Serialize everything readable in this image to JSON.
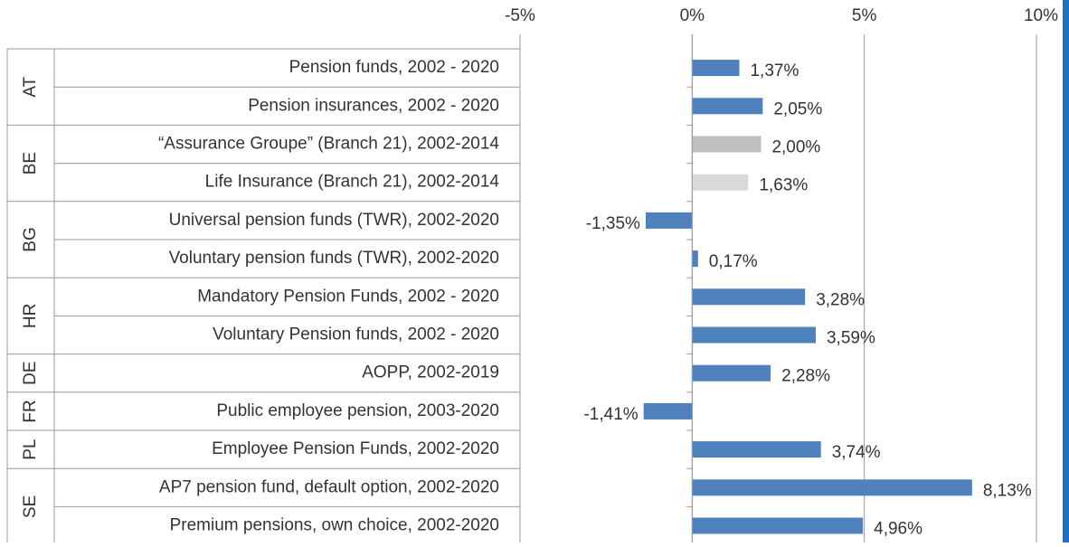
{
  "chart_data": {
    "type": "bar",
    "groups": [
      {
        "label": "AT",
        "categories": [
          "Pension funds, 2002 - 2020",
          "Pension insurances, 2002 - 2020"
        ]
      },
      {
        "label": "BE",
        "categories": [
          "“Assurance Groupe” (Branch 21), 2002-2014",
          "Life Insurance (Branch 21), 2002-2014"
        ]
      },
      {
        "label": "BG",
        "categories": [
          "Universal pension funds (TWR), 2002-2020",
          "Voluntary pension funds (TWR), 2002-2020"
        ]
      },
      {
        "label": "HR",
        "categories": [
          "Mandatory Pension Funds, 2002 - 2020",
          "Voluntary Pension funds, 2002 - 2020"
        ]
      },
      {
        "label": "DE",
        "categories": [
          "AOPP, 2002-2019"
        ]
      },
      {
        "label": "FR",
        "categories": [
          "Public employee pension, 2003-2020"
        ]
      },
      {
        "label": "PL",
        "categories": [
          "Employee Pension Funds, 2002-2020"
        ]
      },
      {
        "label": "SE",
        "categories": [
          "AP7 pension fund, default option, 2002-2020",
          "Premium pensions, own choice, 2002-2020"
        ]
      }
    ],
    "values": [
      1.37,
      2.05,
      2.0,
      1.63,
      -1.35,
      0.17,
      3.28,
      3.59,
      2.28,
      -1.41,
      3.74,
      8.13,
      4.96
    ],
    "value_labels": [
      "1,37%",
      "2,05%",
      "2,00%",
      "1,63%",
      "-1,35%",
      "0,17%",
      "3,28%",
      "3,59%",
      "2,28%",
      "-1,41%",
      "3,74%",
      "8,13%",
      "4,96%"
    ],
    "colors": [
      "#4f81bd",
      "#4f81bd",
      "#bfbfbf",
      "#d9d9d9",
      "#4f81bd",
      "#4f81bd",
      "#4f81bd",
      "#4f81bd",
      "#4f81bd",
      "#4f81bd",
      "#4f81bd",
      "#4f81bd",
      "#4f81bd"
    ],
    "xlim": [
      -5,
      10
    ],
    "xticks": [
      {
        "value": -5,
        "label": "-5%"
      },
      {
        "value": 0,
        "label": "0%"
      },
      {
        "value": 5,
        "label": "5%"
      },
      {
        "value": 10,
        "label": "10%"
      }
    ],
    "grid": true
  }
}
